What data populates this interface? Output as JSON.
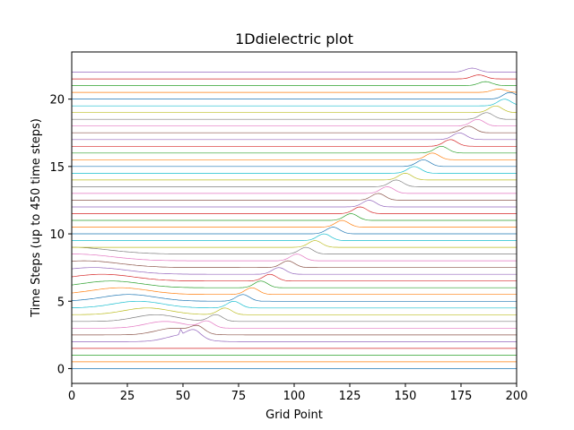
{
  "chart_data": {
    "type": "line",
    "title": "1Ddielectric plot",
    "xlabel": "Grid Point",
    "ylabel": "Time Steps (up to 450 time steps)",
    "xlim": [
      0,
      200
    ],
    "ylim": [
      -1.1,
      23.5
    ],
    "xticks": [
      0,
      25,
      50,
      75,
      100,
      125,
      150,
      175,
      200
    ],
    "yticks": [
      0,
      5,
      10,
      15,
      20
    ],
    "ytick_labels": [
      "0",
      "5",
      "10",
      "15",
      "20"
    ],
    "grid": false,
    "legend": "none",
    "colors": [
      "#1f77b4",
      "#ff7f0e",
      "#2ca02c",
      "#d62728",
      "#9467bd",
      "#8c564b",
      "#e377c2",
      "#7f7f7f",
      "#bcbd22",
      "#17becf"
    ],
    "series_offsets": [
      0.0,
      0.5,
      1.0,
      1.5,
      2.0,
      2.5,
      3.0,
      3.5,
      4.0,
      4.5,
      5.0,
      5.5,
      6.0,
      6.5,
      7.0,
      7.5,
      8.0,
      8.5,
      9.0,
      9.5,
      10.0,
      10.5,
      11.0,
      11.5,
      12.0,
      12.5,
      13.0,
      13.5,
      14.0,
      14.5,
      15.0,
      15.5,
      16.0,
      16.5,
      17.0,
      17.5,
      18.0,
      18.5,
      19.0,
      19.5,
      20.0,
      20.5,
      21.0,
      21.5,
      22.0
    ],
    "transmitted_pulse": {
      "start_x": 55,
      "start_y": 2.3,
      "end_x": 197,
      "end_y": 19.8,
      "amplitude": 0.5,
      "width": 3
    },
    "reflected_pulse": {
      "start_x": 50,
      "start_y": 2.0,
      "end_x": 0,
      "end_y": 8.2,
      "amplitude": 0.5,
      "width": 12
    },
    "late_echoes": [
      {
        "y": 20.5,
        "x": 192,
        "amplitude": 0.25
      },
      {
        "y": 21.0,
        "x": 186,
        "amplitude": 0.3
      },
      {
        "y": 21.5,
        "x": 183,
        "amplitude": 0.3
      },
      {
        "y": 22.0,
        "x": 180,
        "amplitude": 0.3
      }
    ],
    "step_edge_x": 49
  }
}
